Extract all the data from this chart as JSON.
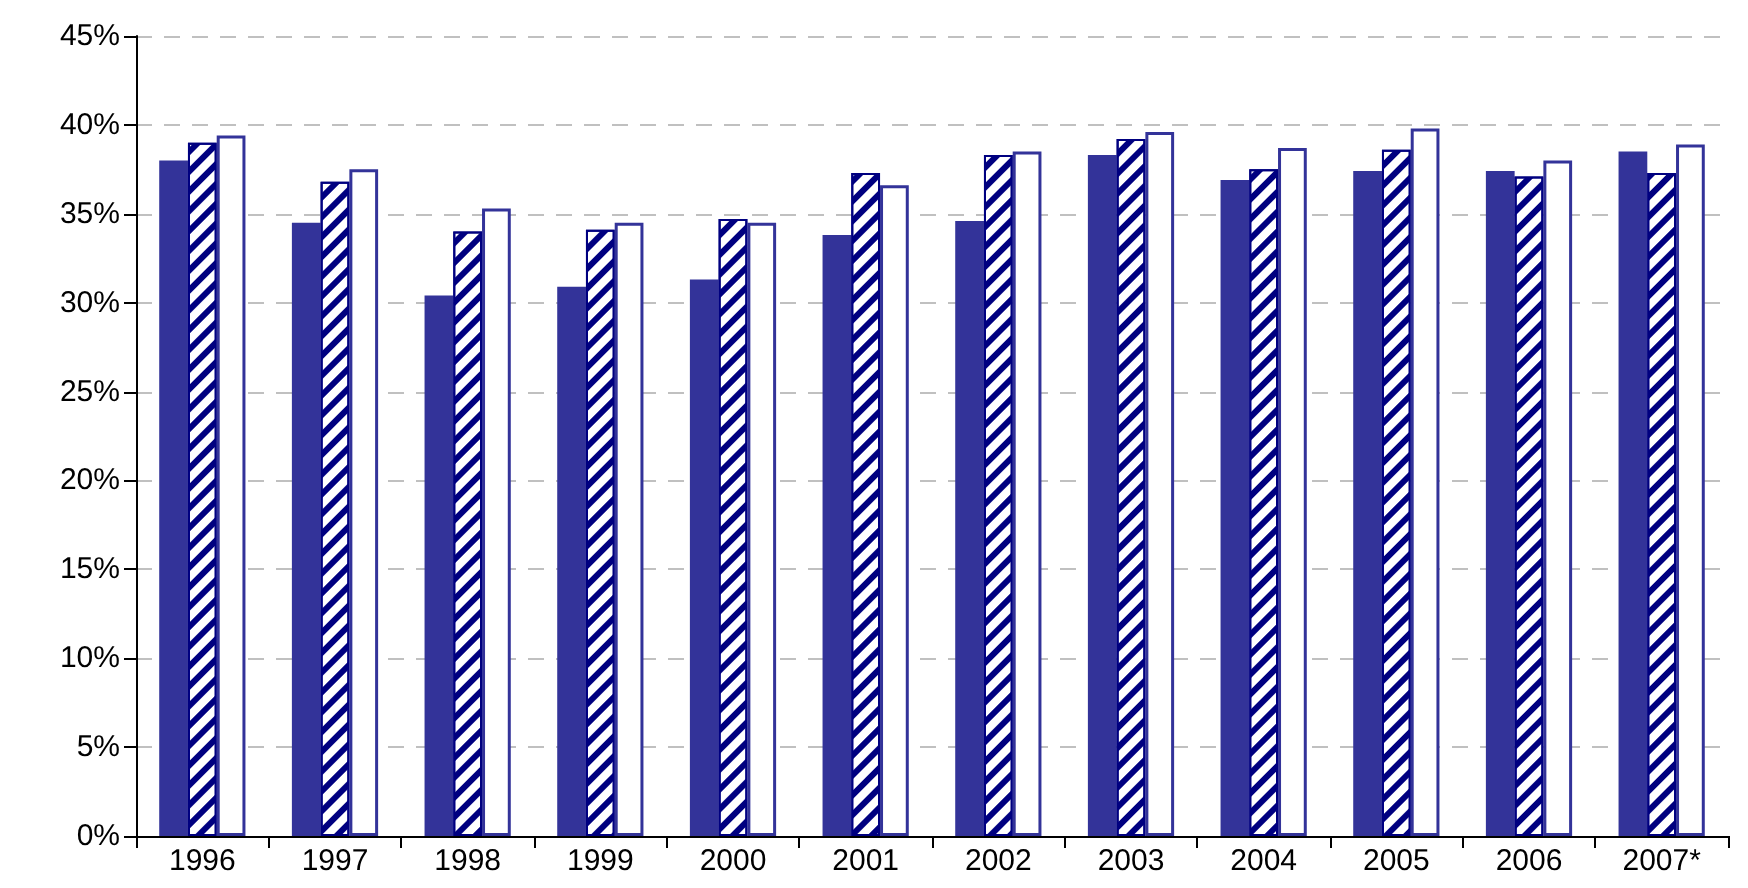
{
  "chart_data": {
    "type": "bar",
    "categories": [
      "1996",
      "1997",
      "1998",
      "1999",
      "2000",
      "2001",
      "2002",
      "2003",
      "2004",
      "2005",
      "2006",
      "2007*"
    ],
    "series": [
      {
        "color": "#333399",
        "values": [
          38,
          34.5,
          30.4,
          30.9,
          31.3,
          33.8,
          34.6,
          38.3,
          36.9,
          37.4,
          37.4,
          38.5
        ]
      },
      {
        "color": "#000080",
        "values": [
          39,
          36.8,
          34,
          34.1,
          34.7,
          37.3,
          38.3,
          39.2,
          37.5,
          38.6,
          37.1,
          37.3
        ]
      },
      {
        "color": "#333399",
        "values": [
          39.4,
          37.5,
          35.3,
          34.5,
          34.5,
          36.6,
          38.5,
          39.6,
          38.7,
          39.8,
          38,
          38.9
        ]
      }
    ],
    "ylim": [
      0,
      45
    ],
    "yticks": [
      {
        "value": 0,
        "label": "0%"
      },
      {
        "value": 5,
        "label": "5%"
      },
      {
        "value": 10,
        "label": "10%"
      },
      {
        "value": 15,
        "label": "15%"
      },
      {
        "value": 20,
        "label": "20%"
      },
      {
        "value": 25,
        "label": "25%"
      },
      {
        "value": 30,
        "label": "30%"
      },
      {
        "value": 35,
        "label": "35%"
      },
      {
        "value": 40,
        "label": "40%"
      },
      {
        "value": 45,
        "label": "45%"
      }
    ],
    "grid": "y"
  }
}
